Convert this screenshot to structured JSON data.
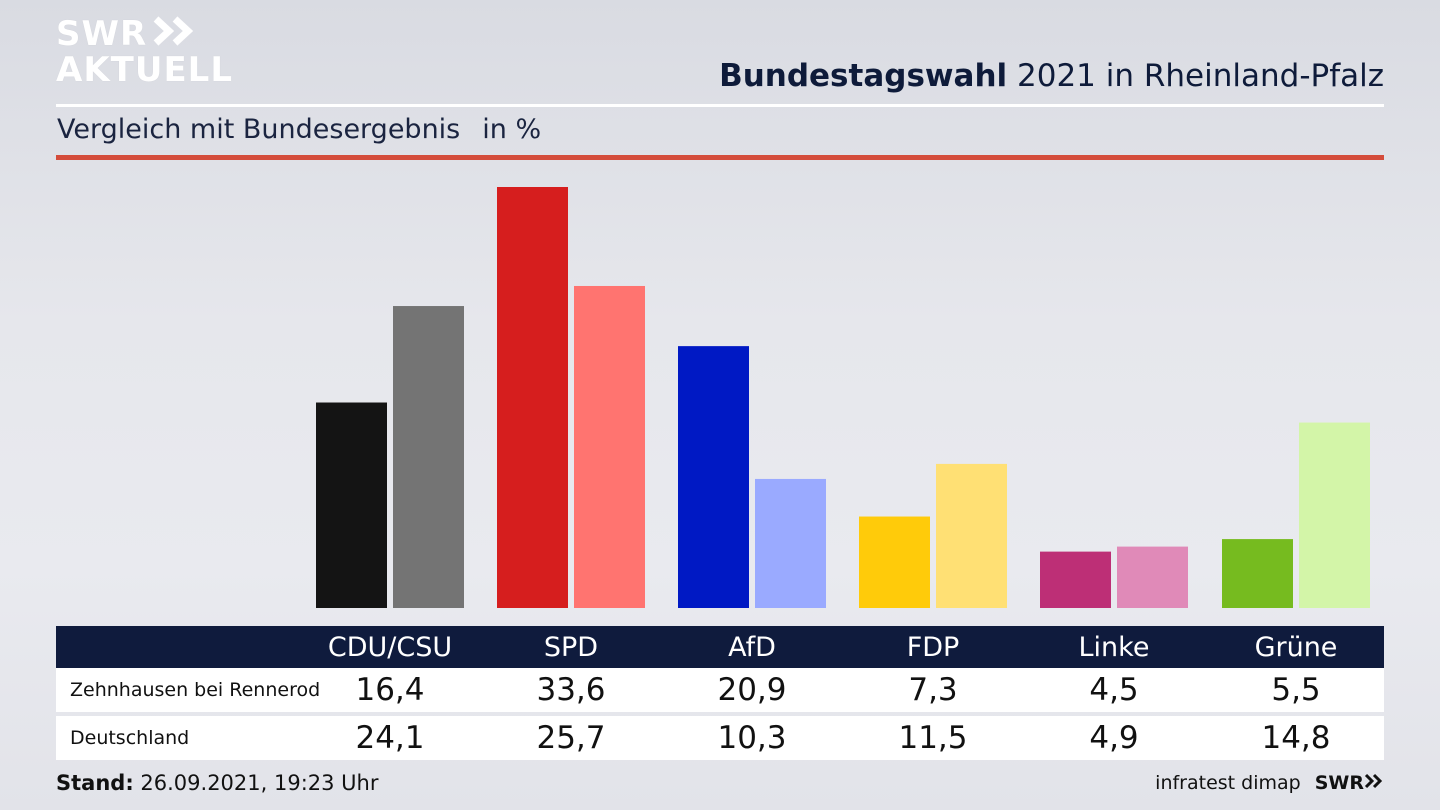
{
  "logo": {
    "line1": "SWR",
    "line2": "AKTUELL"
  },
  "header": {
    "title_bold": "Bundestagswahl",
    "title_rest": " 2021 in Rheinland-Pfalz"
  },
  "subtitle": {
    "text": "Vergleich mit Bundesergebnis",
    "unit": "in %"
  },
  "chart_data": {
    "type": "bar",
    "categories": [
      "CDU/CSU",
      "SPD",
      "AfD",
      "FDP",
      "Linke",
      "Grüne"
    ],
    "series": [
      {
        "name": "Zehnhausen bei Rennerod",
        "values": [
          16.4,
          33.6,
          20.9,
          7.3,
          4.5,
          5.5
        ]
      },
      {
        "name": "Deutschland",
        "values": [
          24.1,
          25.7,
          10.3,
          11.5,
          4.9,
          14.8
        ]
      }
    ],
    "colors": {
      "Zehnhausen bei Rennerod": [
        "#141414",
        "#d61e1e",
        "#0019c4",
        "#ffcb0a",
        "#bd2f76",
        "#76bb1f"
      ],
      "Deutschland": [
        "#747474",
        "#ff7470",
        "#9aaaff",
        "#ffe074",
        "#e08ab8",
        "#d3f5a8"
      ]
    },
    "ylim": [
      0,
      35
    ],
    "grid": false,
    "legend": "table-below"
  },
  "table": {
    "rows": [
      {
        "label": "Zehnhausen bei Rennerod",
        "values": [
          "16,4",
          "33,6",
          "20,9",
          "7,3",
          "4,5",
          "5,5"
        ]
      },
      {
        "label": "Deutschland",
        "values": [
          "24,1",
          "25,7",
          "10,3",
          "11,5",
          "4,9",
          "14,8"
        ]
      }
    ]
  },
  "footer": {
    "stand_label": "Stand:",
    "stand_value": " 26.09.2021, 19:23 Uhr",
    "source": "infratest dimap",
    "brand": "SWR"
  }
}
